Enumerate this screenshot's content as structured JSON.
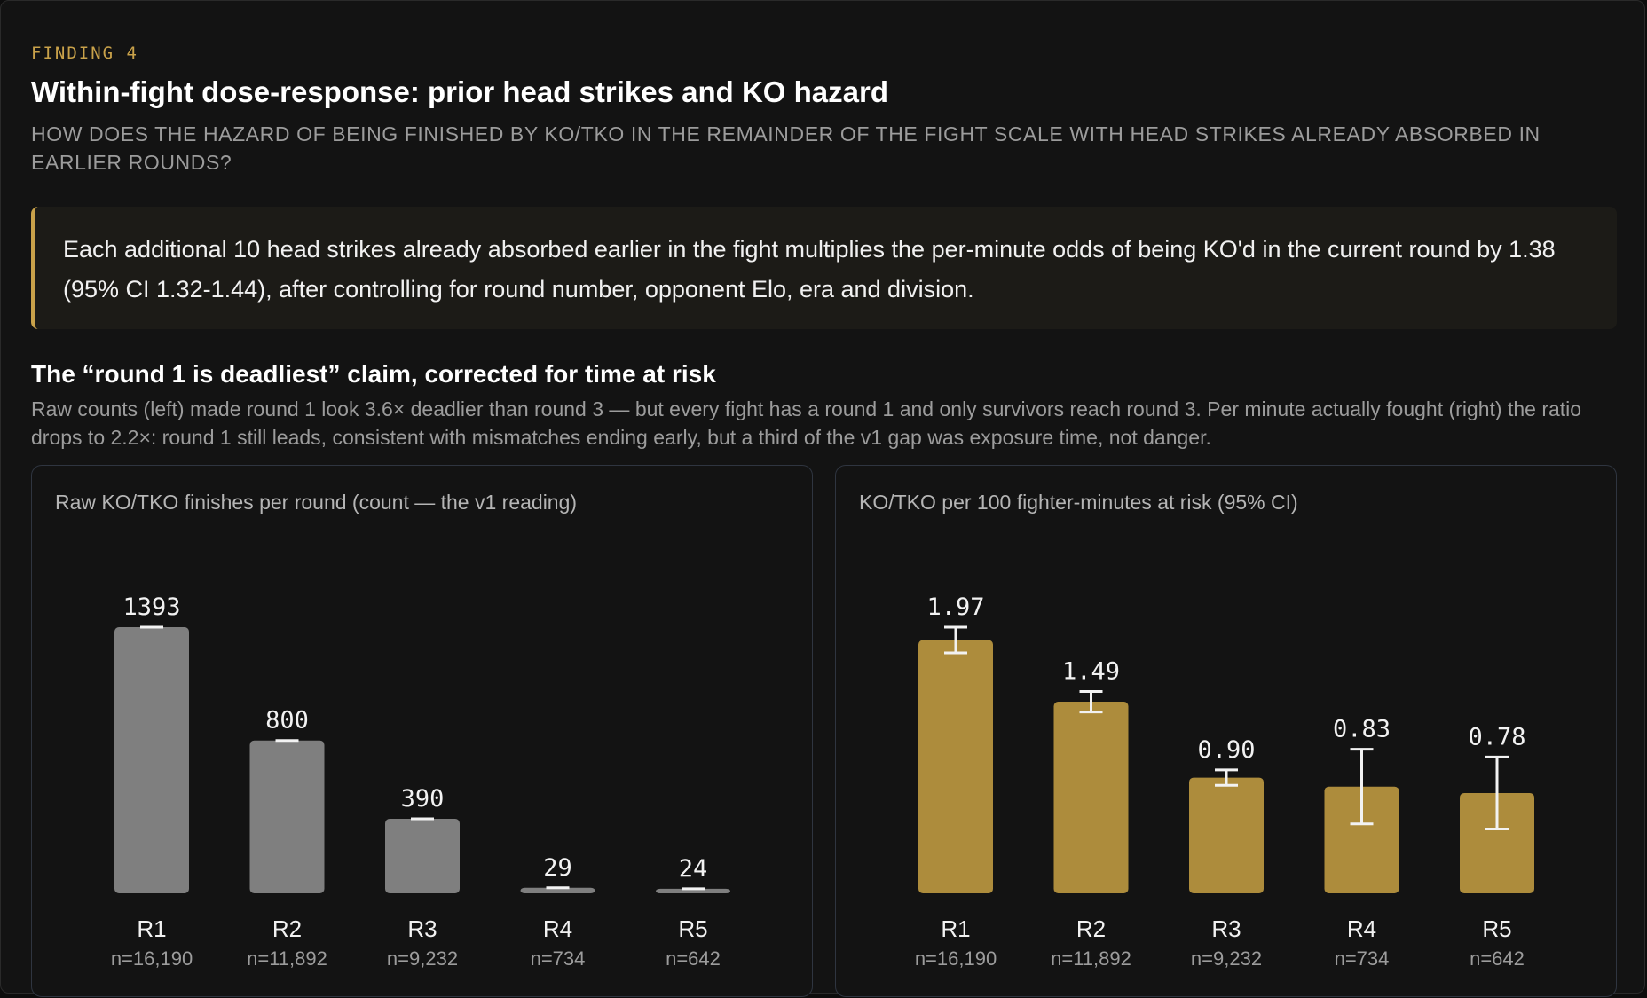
{
  "finding": {
    "eyebrow": "FINDING 4",
    "title": "Within-fight dose-response: prior head strikes and KO hazard",
    "subtitle": "HOW DOES THE HAZARD OF BEING FINISHED BY KO/TKO IN THE REMAINDER OF THE FIGHT SCALE WITH HEAD STRIKES ALREADY ABSORBED IN EARLIER ROUNDS?",
    "callout": "Each additional 10 head strikes already absorbed earlier in the fight multiplies the per-minute odds of being KO'd in the current round by 1.38 (95% CI 1.32-1.44), after controlling for round number, opponent Elo, era and division."
  },
  "section": {
    "title": "The “round 1 is deadliest” claim, corrected for time at risk",
    "description": "Raw counts (left) made round 1 look 3.6× deadlier than round 3 — but every fight has a round 1 and only survivors reach round 3. Per minute actually fought (right) the ratio drops to 2.2×: round 1 still leads, consistent with mismatches ending early, but a third of the v1 gap was exposure time, not danger."
  },
  "colors": {
    "gray_bar": "#7f7f7f",
    "gold_bar": "#ad8c3c",
    "accent": "#c9a24a"
  },
  "chart_data": [
    {
      "type": "bar",
      "title": "Raw KO/TKO finishes per round (count — the v1 reading)",
      "categories": [
        "R1",
        "R2",
        "R3",
        "R4",
        "R5"
      ],
      "sample_sizes": [
        "n=16,190",
        "n=11,892",
        "n=9,232",
        "n=734",
        "n=642"
      ],
      "values": [
        1393,
        800,
        390,
        29,
        24
      ],
      "value_labels": [
        "1393",
        "800",
        "390",
        "29",
        "24"
      ],
      "ylim": [
        0,
        1393
      ],
      "grid": false
    },
    {
      "type": "bar",
      "title": "KO/TKO per 100 fighter-minutes at risk (95% CI)",
      "categories": [
        "R1",
        "R2",
        "R3",
        "R4",
        "R5"
      ],
      "sample_sizes": [
        "n=16,190",
        "n=11,892",
        "n=9,232",
        "n=734",
        "n=642"
      ],
      "values": [
        1.97,
        1.49,
        0.9,
        0.83,
        0.78
      ],
      "value_labels": [
        "1.97",
        "1.49",
        "0.90",
        "0.83",
        "0.78"
      ],
      "ci_low": [
        1.87,
        1.41,
        0.84,
        0.54,
        0.5
      ],
      "ci_high": [
        2.07,
        1.57,
        0.96,
        1.12,
        1.06
      ],
      "ylim": [
        0,
        2.07
      ],
      "grid": false
    }
  ]
}
